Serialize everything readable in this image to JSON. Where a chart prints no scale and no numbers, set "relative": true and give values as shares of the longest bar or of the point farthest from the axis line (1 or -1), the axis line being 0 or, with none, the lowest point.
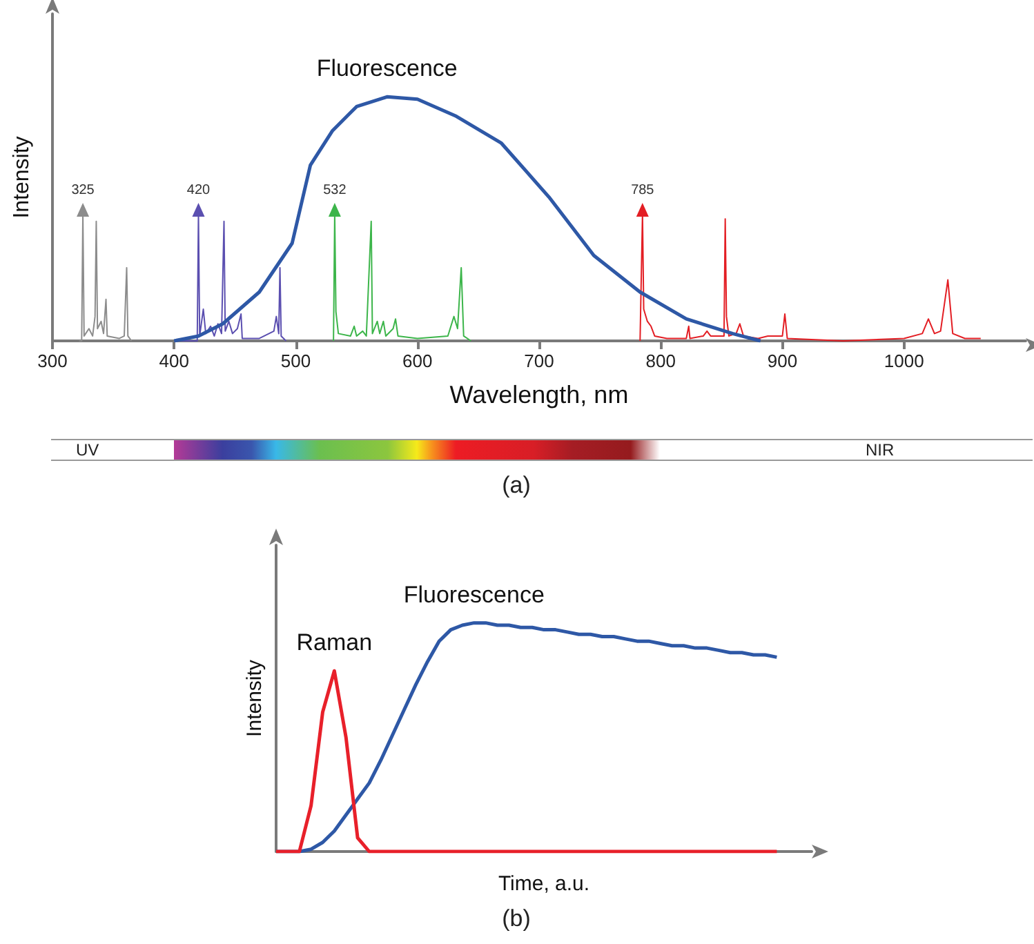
{
  "chart_data": [
    {
      "type": "line",
      "relative": true,
      "xlabel": "Wavelength, nm",
      "ylabel": "Intensity",
      "xlim": [
        300,
        1100
      ],
      "xticks": [
        300,
        400,
        500,
        600,
        700,
        800,
        900,
        1000
      ],
      "series": [
        {
          "name": "Fluorescence",
          "color": "#2e58a6",
          "x": [
            400,
            420,
            440,
            470,
            497,
            512,
            530,
            550,
            575,
            600,
            632,
            669,
            708,
            745,
            783,
            821,
            859,
            882
          ],
          "values": [
            0,
            0.02,
            0.07,
            0.2,
            0.4,
            0.72,
            0.86,
            0.96,
            1,
            0.99,
            0.92,
            0.81,
            0.59,
            0.35,
            0.2,
            0.09,
            0.03,
            0
          ]
        },
        {
          "color": "#8c8c8c",
          "x": [
            322,
            324,
            325,
            326,
            330,
            333,
            335,
            336,
            337,
            340,
            342,
            344,
            345,
            355,
            359,
            361,
            362,
            365
          ],
          "values": [
            0,
            0,
            0.52,
            0.02,
            0.05,
            0.02,
            0.1,
            0.49,
            0.05,
            0.08,
            0.03,
            0.17,
            0.02,
            0.01,
            0.02,
            0.3,
            0.02,
            0
          ]
        },
        {
          "color": "#5b4fb0",
          "x": [
            405,
            419,
            420,
            421,
            424,
            426,
            430,
            433,
            436,
            439,
            441,
            442,
            445,
            448,
            452,
            455,
            456,
            470,
            482,
            484,
            486,
            487,
            488,
            492
          ],
          "values": [
            0,
            0,
            0.52,
            0.02,
            0.13,
            0.03,
            0.06,
            0.02,
            0.07,
            0.03,
            0.49,
            0.04,
            0.08,
            0.03,
            0.05,
            0.11,
            0.01,
            0.01,
            0.04,
            0.1,
            0.03,
            0.3,
            0.02,
            0
          ]
        },
        {
          "color": "#3cb54a",
          "x": [
            531,
            532,
            533,
            535,
            545,
            548,
            550,
            555,
            558,
            562,
            563,
            567,
            569,
            572,
            574,
            580,
            582,
            584,
            600,
            625,
            630,
            633,
            636,
            638,
            644
          ],
          "values": [
            0,
            0.52,
            0.12,
            0.03,
            0.02,
            0.06,
            0.02,
            0.04,
            0.02,
            0.49,
            0.03,
            0.08,
            0.03,
            0.08,
            0.02,
            0.05,
            0.09,
            0.02,
            0.01,
            0.02,
            0.1,
            0.05,
            0.3,
            0.02,
            0
          ]
        },
        {
          "color": "#e31e24",
          "x": [
            783,
            785,
            786,
            789,
            792,
            795,
            805,
            821,
            823,
            824,
            835,
            838,
            841,
            852,
            853,
            854,
            856,
            862,
            865,
            868,
            880,
            888,
            900,
            902,
            904,
            950,
            1000,
            1015,
            1020,
            1025,
            1030,
            1036,
            1040,
            1050,
            1063
          ],
          "values": [
            0,
            0.52,
            0.13,
            0.08,
            0.06,
            0.02,
            0.01,
            0.01,
            0.06,
            0.01,
            0.02,
            0.04,
            0.02,
            0.02,
            0.5,
            0.1,
            0.02,
            0.03,
            0.07,
            0.02,
            0.01,
            0.02,
            0.02,
            0.11,
            0.01,
            0,
            0.01,
            0.03,
            0.09,
            0.03,
            0.04,
            0.25,
            0.03,
            0.01,
            0.01
          ]
        }
      ],
      "annotations": [
        {
          "text": "325",
          "x": 325,
          "y": 0.52
        },
        {
          "text": "420",
          "x": 420,
          "y": 0.52
        },
        {
          "text": "532",
          "x": 532,
          "y": 0.52
        },
        {
          "text": "785",
          "x": 785,
          "y": 0.52
        },
        "UV",
        "NIR",
        "(a)"
      ]
    },
    {
      "type": "line",
      "relative": true,
      "xlabel": "Time, a.u.",
      "ylabel": "Intensity",
      "categories": [
        null,
        null,
        null,
        null,
        null,
        null,
        null,
        null,
        null,
        null,
        null,
        null,
        null,
        null,
        null,
        null,
        null,
        null,
        null,
        null,
        null,
        null,
        null,
        null,
        null,
        null,
        null,
        null,
        null,
        null,
        null,
        null,
        null,
        null,
        null,
        null,
        null,
        null,
        null,
        null,
        null,
        null,
        null,
        null,
        null,
        null,
        null
      ],
      "series": [
        {
          "name": "Fluorescence",
          "color": "#2e58a6",
          "values": [
            0,
            0,
            0,
            0.01,
            0.04,
            0.09,
            0.16,
            0.23,
            0.3,
            0.4,
            0.51,
            0.62,
            0.73,
            0.83,
            0.92,
            0.97,
            0.99,
            1,
            1,
            0.99,
            0.99,
            0.98,
            0.98,
            0.97,
            0.97,
            0.96,
            0.95,
            0.95,
            0.94,
            0.94,
            0.93,
            0.92,
            0.92,
            0.91,
            0.9,
            0.9,
            0.89,
            0.89,
            0.88,
            0.87,
            0.87,
            0.86,
            0.86,
            0.85,
            null,
            null,
            null
          ]
        },
        {
          "name": "Raman",
          "color": "#e8202a",
          "values": [
            0,
            0,
            0,
            0.2,
            0.61,
            0.79,
            0.5,
            0.06,
            0,
            0,
            0,
            0,
            0,
            0,
            0,
            0,
            0,
            0,
            0,
            0,
            0,
            0,
            0,
            0,
            0,
            0,
            0,
            0,
            0,
            0,
            0,
            0,
            0,
            0,
            0,
            0,
            0,
            0,
            0,
            0,
            0,
            0,
            0,
            0,
            null,
            null,
            null
          ]
        }
      ],
      "annotations": [
        "(b)"
      ]
    }
  ]
}
